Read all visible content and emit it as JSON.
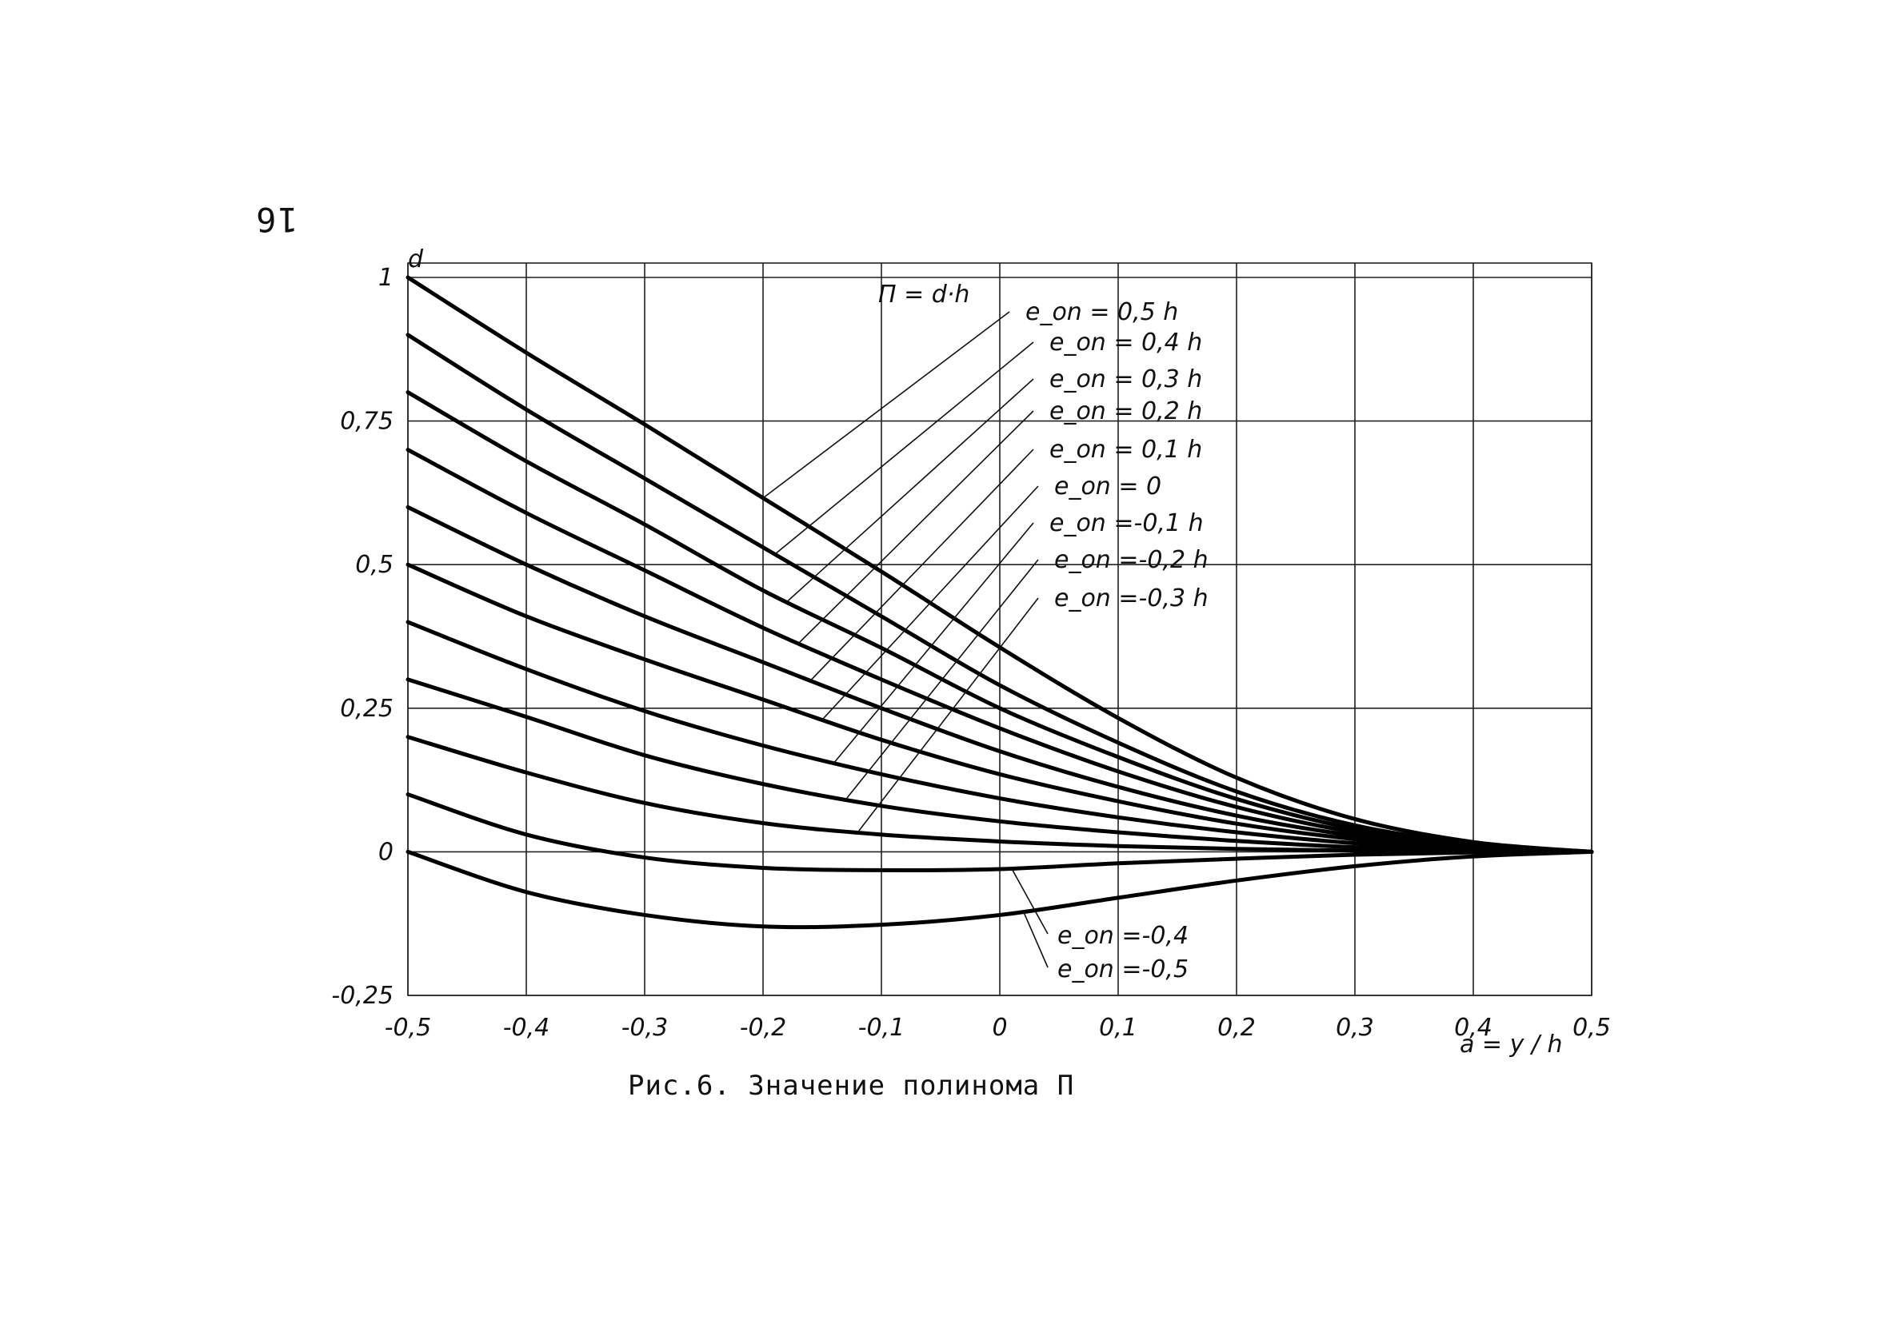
{
  "page_number": "16",
  "caption": "Рис.6. Значение полинома П",
  "chart_data": {
    "type": "line",
    "title": "",
    "formula": "П = d·h",
    "xlabel": "a = y / h",
    "ylabel": "d",
    "xlim": [
      -0.5,
      0.5
    ],
    "ylim": [
      -0.25,
      1
    ],
    "x_ticks": [
      -0.5,
      -0.4,
      -0.3,
      -0.2,
      -0.1,
      0,
      0.1,
      0.2,
      0.3,
      0.4,
      0.5
    ],
    "x_tick_labels": [
      "-0,5",
      "-0,4",
      "-0,3",
      "-0,2",
      "-0,1",
      "0",
      "0,1",
      "0,2",
      "0,3",
      "0,4",
      "0,5"
    ],
    "y_ticks": [
      -0.25,
      0,
      0.25,
      0.5,
      0.75,
      1
    ],
    "y_tick_labels": [
      "-0,25",
      "0",
      "0,25",
      "0,5",
      "0,75",
      "1"
    ],
    "grid": true,
    "x": [
      -0.5,
      -0.4,
      -0.3,
      -0.2,
      -0.1,
      0,
      0.1,
      0.2,
      0.3,
      0.4,
      0.5
    ],
    "series": [
      {
        "name": "e_on = 0,5 h",
        "values": [
          1.0,
          0.869,
          0.744,
          0.616,
          0.488,
          0.356,
          0.233,
          0.129,
          0.057,
          0.017,
          0.0
        ]
      },
      {
        "name": "e_on = 0,4 h",
        "values": [
          0.9,
          0.77,
          0.65,
          0.53,
          0.41,
          0.29,
          0.19,
          0.105,
          0.046,
          0.014,
          0.0
        ]
      },
      {
        "name": "e_on = 0,3 h",
        "values": [
          0.8,
          0.68,
          0.57,
          0.455,
          0.355,
          0.25,
          0.165,
          0.092,
          0.04,
          0.012,
          0.0
        ]
      },
      {
        "name": "e_on = 0,2 h",
        "values": [
          0.7,
          0.59,
          0.49,
          0.39,
          0.3,
          0.215,
          0.14,
          0.078,
          0.034,
          0.01,
          0.0
        ]
      },
      {
        "name": "e_on = 0,1 h",
        "values": [
          0.6,
          0.5,
          0.41,
          0.33,
          0.25,
          0.175,
          0.113,
          0.063,
          0.028,
          0.008,
          0.0
        ]
      },
      {
        "name": "e_on = 0",
        "values": [
          0.5,
          0.41,
          0.335,
          0.265,
          0.195,
          0.135,
          0.088,
          0.049,
          0.022,
          0.006,
          0.0
        ]
      },
      {
        "name": "e_on =-0,1 h",
        "values": [
          0.4,
          0.318,
          0.245,
          0.185,
          0.135,
          0.093,
          0.06,
          0.034,
          0.015,
          0.004,
          0.0
        ]
      },
      {
        "name": "e_on =-0,2 h",
        "values": [
          0.3,
          0.235,
          0.168,
          0.118,
          0.08,
          0.053,
          0.034,
          0.019,
          0.008,
          0.002,
          0.0
        ]
      },
      {
        "name": "e_on =-0,3 h",
        "values": [
          0.2,
          0.138,
          0.085,
          0.05,
          0.03,
          0.018,
          0.01,
          0.005,
          0.002,
          0.0,
          0.0
        ]
      },
      {
        "name": "e_on =-0,4",
        "values": [
          0.1,
          0.03,
          -0.01,
          -0.028,
          -0.032,
          -0.03,
          -0.02,
          -0.012,
          -0.005,
          -0.001,
          0.0
        ]
      },
      {
        "name": "e_on =-0,5",
        "values": [
          0.0,
          -0.07,
          -0.11,
          -0.13,
          -0.127,
          -0.11,
          -0.08,
          -0.05,
          -0.025,
          -0.008,
          0.0
        ]
      }
    ]
  }
}
